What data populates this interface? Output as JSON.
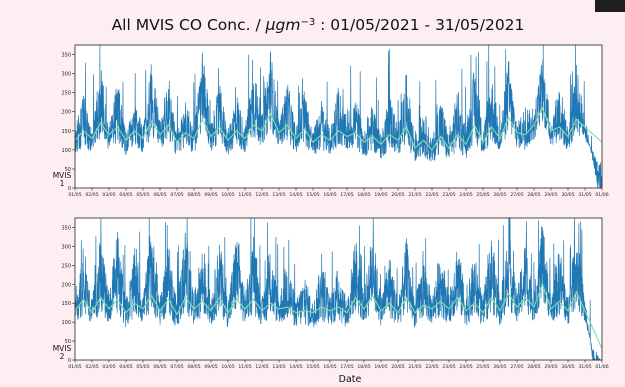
{
  "title": "All MVIS CO Conc. / μgm⁻³ :  01/05/2021 - 31/05/2021",
  "title_parts": {
    "prefix": "All MVIS CO Conc. / ",
    "unit": "μgm",
    "exponent": "−3",
    "suffix": " :  01/05/2021 - 31/05/2021"
  },
  "colors": {
    "background": "#fdeff1",
    "raw_series": "#1f77b4",
    "smoothed_series": "#7fe0a8",
    "corner_block": "#1e1e1e"
  },
  "chart_data": [
    {
      "type": "line",
      "panel_label": [
        "MVIS",
        "1"
      ],
      "xlabel": "",
      "ylim": [
        0,
        375
      ],
      "yticks": [
        0,
        50,
        100,
        150,
        200,
        250,
        300,
        350
      ],
      "x_range": [
        "01/05",
        "01/06"
      ],
      "xticks": [
        "01/05",
        "02/05",
        "03/05",
        "04/05",
        "05/05",
        "06/05",
        "07/05",
        "08/05",
        "09/05",
        "10/05",
        "11/05",
        "12/05",
        "13/05",
        "14/05",
        "15/05",
        "16/05",
        "17/05",
        "18/05",
        "19/05",
        "20/05",
        "21/05",
        "22/05",
        "23/05",
        "24/05",
        "25/05",
        "26/05",
        "27/05",
        "28/05",
        "29/05",
        "30/05",
        "31/05",
        "01/06"
      ],
      "x_days": [
        0.0,
        0.5,
        1.0,
        1.5,
        2.0,
        2.5,
        3.0,
        3.5,
        4.0,
        4.5,
        5.0,
        5.5,
        6.0,
        6.5,
        7.0,
        7.5,
        8.0,
        8.5,
        9.0,
        9.5,
        10.0,
        10.5,
        11.0,
        11.5,
        12.0,
        12.5,
        13.0,
        13.5,
        14.0,
        14.5,
        15.0,
        15.5,
        16.0,
        16.5,
        17.0,
        17.5,
        18.0,
        18.5,
        19.0,
        19.5,
        20.0,
        20.5,
        21.0,
        21.5,
        22.0,
        22.5,
        23.0,
        23.5,
        24.0,
        24.5,
        25.0,
        25.5,
        26.0,
        26.5,
        27.0,
        27.5,
        28.0,
        28.5,
        29.0,
        29.5,
        30.0,
        30.5,
        31.0
      ],
      "series": [
        {
          "values": [
            130,
            220,
            125,
            300,
            140,
            260,
            120,
            200,
            135,
            320,
            150,
            270,
            115,
            210,
            130,
            340,
            140,
            250,
            125,
            230,
            135,
            300,
            160,
            350,
            145,
            260,
            130,
            240,
            120,
            210,
            125,
            250,
            140,
            220,
            120,
            200,
            115,
            230,
            135,
            280,
            110,
            190,
            100,
            220,
            110,
            240,
            120,
            300,
            125,
            280,
            130,
            320,
            140,
            200,
            160,
            330,
            145,
            260,
            130,
            300,
            165
          ]
        },
        {
          "values": [
            125,
            150,
            130,
            170,
            140,
            160,
            125,
            150,
            130,
            175,
            140,
            165,
            120,
            145,
            130,
            180,
            135,
            160,
            125,
            150,
            130,
            165,
            150,
            195,
            145,
            165,
            130,
            155,
            120,
            140,
            125,
            150,
            135,
            145,
            120,
            135,
            115,
            140,
            125,
            160,
            105,
            125,
            100,
            135,
            105,
            140,
            115,
            165,
            120,
            160,
            130,
            185,
            145,
            140,
            165,
            210,
            150,
            160,
            135,
            180,
            160
          ]
        }
      ]
    },
    {
      "type": "line",
      "panel_label": [
        "MVIS",
        "2"
      ],
      "xlabel": "Date",
      "ylim": [
        0,
        375
      ],
      "yticks": [
        0,
        50,
        100,
        150,
        200,
        250,
        300,
        350
      ],
      "x_range": [
        "01/05",
        "01/06"
      ],
      "xticks": [
        "01/05",
        "02/05",
        "03/05",
        "04/05",
        "05/05",
        "06/05",
        "07/05",
        "08/05",
        "09/05",
        "10/05",
        "11/05",
        "12/05",
        "13/05",
        "14/05",
        "15/05",
        "16/05",
        "17/05",
        "18/05",
        "19/05",
        "20/05",
        "21/05",
        "22/05",
        "23/05",
        "24/05",
        "25/05",
        "26/05",
        "27/05",
        "28/05",
        "29/05",
        "30/05",
        "31/05",
        "01/06"
      ],
      "x_days": [
        0.0,
        0.5,
        1.0,
        1.5,
        2.0,
        2.5,
        3.0,
        3.5,
        4.0,
        4.5,
        5.0,
        5.5,
        6.0,
        6.5,
        7.0,
        7.5,
        8.0,
        8.5,
        9.0,
        9.5,
        10.0,
        10.5,
        11.0,
        11.5,
        12.0,
        12.5,
        13.0,
        13.5,
        14.0,
        14.5,
        15.0,
        15.5,
        16.0,
        16.5,
        17.0,
        17.5,
        18.0,
        18.5,
        19.0,
        19.5,
        20.0,
        20.5,
        21.0,
        21.5,
        22.0,
        22.5,
        23.0,
        23.5,
        24.0,
        24.5,
        25.0,
        25.5,
        26.0,
        26.5,
        27.0,
        27.5,
        28.0,
        28.5,
        29.0,
        29.5,
        30.0,
        30.5,
        31.0
      ],
      "series": [
        {
          "values": [
            140,
            250,
            130,
            300,
            150,
            330,
            135,
            260,
            150,
            340,
            140,
            290,
            130,
            330,
            145,
            280,
            140,
            300,
            130,
            320,
            150,
            300,
            135,
            270,
            140,
            250,
            130,
            200,
            125,
            240,
            140,
            230,
            130,
            310,
            145,
            330,
            140,
            260,
            135,
            300,
            130,
            250,
            140,
            280,
            145,
            300,
            140,
            260,
            135,
            310,
            140,
            320,
            150,
            300,
            145,
            350,
            140,
            280,
            135,
            330,
            140
          ]
        },
        {
          "values": [
            130,
            160,
            125,
            165,
            135,
            160,
            125,
            150,
            135,
            170,
            130,
            160,
            120,
            165,
            135,
            155,
            130,
            165,
            125,
            160,
            135,
            160,
            130,
            150,
            135,
            140,
            125,
            130,
            125,
            140,
            130,
            140,
            125,
            165,
            135,
            170,
            130,
            150,
            125,
            165,
            125,
            145,
            135,
            155,
            135,
            165,
            130,
            150,
            125,
            165,
            130,
            175,
            140,
            165,
            140,
            200,
            135,
            155,
            130,
            180,
            130
          ]
        }
      ]
    }
  ]
}
